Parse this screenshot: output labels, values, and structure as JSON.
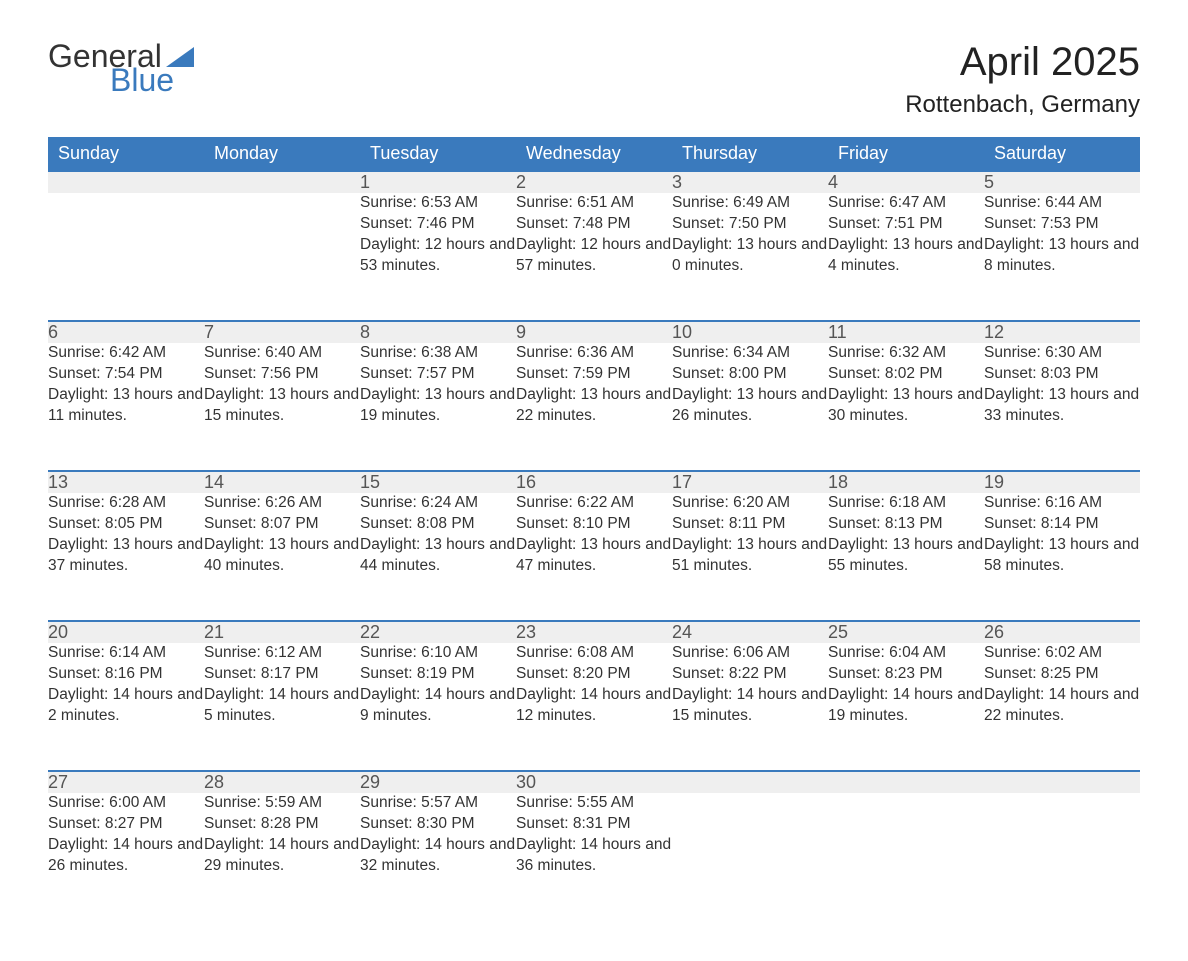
{
  "logo": {
    "word1": "General",
    "word2": "Blue",
    "accent_color": "#3a7abd",
    "text_color": "#333333"
  },
  "title": "April 2025",
  "subtitle": "Rottenbach, Germany",
  "calendar": {
    "header_bg": "#3a7abd",
    "header_fg": "#ffffff",
    "daynum_bg": "#efefef",
    "border_color": "#3a7abd",
    "text_color": "#333333",
    "font_size_header": 18,
    "font_size_daynum": 18,
    "font_size_body": 15.5,
    "columns": [
      "Sunday",
      "Monday",
      "Tuesday",
      "Wednesday",
      "Thursday",
      "Friday",
      "Saturday"
    ],
    "weeks": [
      [
        null,
        null,
        {
          "n": "1",
          "sunrise": "6:53 AM",
          "sunset": "7:46 PM",
          "daylight": "12 hours and 53 minutes."
        },
        {
          "n": "2",
          "sunrise": "6:51 AM",
          "sunset": "7:48 PM",
          "daylight": "12 hours and 57 minutes."
        },
        {
          "n": "3",
          "sunrise": "6:49 AM",
          "sunset": "7:50 PM",
          "daylight": "13 hours and 0 minutes."
        },
        {
          "n": "4",
          "sunrise": "6:47 AM",
          "sunset": "7:51 PM",
          "daylight": "13 hours and 4 minutes."
        },
        {
          "n": "5",
          "sunrise": "6:44 AM",
          "sunset": "7:53 PM",
          "daylight": "13 hours and 8 minutes."
        }
      ],
      [
        {
          "n": "6",
          "sunrise": "6:42 AM",
          "sunset": "7:54 PM",
          "daylight": "13 hours and 11 minutes."
        },
        {
          "n": "7",
          "sunrise": "6:40 AM",
          "sunset": "7:56 PM",
          "daylight": "13 hours and 15 minutes."
        },
        {
          "n": "8",
          "sunrise": "6:38 AM",
          "sunset": "7:57 PM",
          "daylight": "13 hours and 19 minutes."
        },
        {
          "n": "9",
          "sunrise": "6:36 AM",
          "sunset": "7:59 PM",
          "daylight": "13 hours and 22 minutes."
        },
        {
          "n": "10",
          "sunrise": "6:34 AM",
          "sunset": "8:00 PM",
          "daylight": "13 hours and 26 minutes."
        },
        {
          "n": "11",
          "sunrise": "6:32 AM",
          "sunset": "8:02 PM",
          "daylight": "13 hours and 30 minutes."
        },
        {
          "n": "12",
          "sunrise": "6:30 AM",
          "sunset": "8:03 PM",
          "daylight": "13 hours and 33 minutes."
        }
      ],
      [
        {
          "n": "13",
          "sunrise": "6:28 AM",
          "sunset": "8:05 PM",
          "daylight": "13 hours and 37 minutes."
        },
        {
          "n": "14",
          "sunrise": "6:26 AM",
          "sunset": "8:07 PM",
          "daylight": "13 hours and 40 minutes."
        },
        {
          "n": "15",
          "sunrise": "6:24 AM",
          "sunset": "8:08 PM",
          "daylight": "13 hours and 44 minutes."
        },
        {
          "n": "16",
          "sunrise": "6:22 AM",
          "sunset": "8:10 PM",
          "daylight": "13 hours and 47 minutes."
        },
        {
          "n": "17",
          "sunrise": "6:20 AM",
          "sunset": "8:11 PM",
          "daylight": "13 hours and 51 minutes."
        },
        {
          "n": "18",
          "sunrise": "6:18 AM",
          "sunset": "8:13 PM",
          "daylight": "13 hours and 55 minutes."
        },
        {
          "n": "19",
          "sunrise": "6:16 AM",
          "sunset": "8:14 PM",
          "daylight": "13 hours and 58 minutes."
        }
      ],
      [
        {
          "n": "20",
          "sunrise": "6:14 AM",
          "sunset": "8:16 PM",
          "daylight": "14 hours and 2 minutes."
        },
        {
          "n": "21",
          "sunrise": "6:12 AM",
          "sunset": "8:17 PM",
          "daylight": "14 hours and 5 minutes."
        },
        {
          "n": "22",
          "sunrise": "6:10 AM",
          "sunset": "8:19 PM",
          "daylight": "14 hours and 9 minutes."
        },
        {
          "n": "23",
          "sunrise": "6:08 AM",
          "sunset": "8:20 PM",
          "daylight": "14 hours and 12 minutes."
        },
        {
          "n": "24",
          "sunrise": "6:06 AM",
          "sunset": "8:22 PM",
          "daylight": "14 hours and 15 minutes."
        },
        {
          "n": "25",
          "sunrise": "6:04 AM",
          "sunset": "8:23 PM",
          "daylight": "14 hours and 19 minutes."
        },
        {
          "n": "26",
          "sunrise": "6:02 AM",
          "sunset": "8:25 PM",
          "daylight": "14 hours and 22 minutes."
        }
      ],
      [
        {
          "n": "27",
          "sunrise": "6:00 AM",
          "sunset": "8:27 PM",
          "daylight": "14 hours and 26 minutes."
        },
        {
          "n": "28",
          "sunrise": "5:59 AM",
          "sunset": "8:28 PM",
          "daylight": "14 hours and 29 minutes."
        },
        {
          "n": "29",
          "sunrise": "5:57 AM",
          "sunset": "8:30 PM",
          "daylight": "14 hours and 32 minutes."
        },
        {
          "n": "30",
          "sunrise": "5:55 AM",
          "sunset": "8:31 PM",
          "daylight": "14 hours and 36 minutes."
        },
        null,
        null,
        null
      ]
    ],
    "labels": {
      "sunrise": "Sunrise: ",
      "sunset": "Sunset: ",
      "daylight": "Daylight: "
    }
  }
}
